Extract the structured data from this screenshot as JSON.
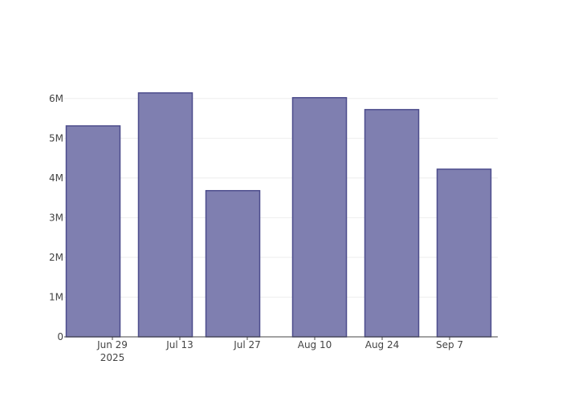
{
  "chart_data": {
    "type": "bar",
    "x": [
      "2025-06-25",
      "2025-07-10",
      "2025-07-24",
      "2025-08-11",
      "2025-08-26",
      "2025-09-10"
    ],
    "values": [
      5310000,
      6140000,
      3680000,
      6020000,
      5720000,
      4220000
    ],
    "color": "#7f7fb0",
    "edge_color": "#4c4c8c",
    "xlim": [
      "2025-06-19",
      "2025-09-17"
    ],
    "xticks": [
      {
        "value": "2025-06-29",
        "label": "Jun 29\n2025"
      },
      {
        "value": "2025-07-13",
        "label": "Jul 13"
      },
      {
        "value": "2025-07-27",
        "label": "Jul 27"
      },
      {
        "value": "2025-08-10",
        "label": "Aug 10"
      },
      {
        "value": "2025-08-24",
        "label": "Aug 24"
      },
      {
        "value": "2025-09-07",
        "label": "Sep 7"
      }
    ],
    "ylim": [
      0,
      6460000
    ],
    "yticks": [
      0,
      {
        "value": 1000000,
        "label": "1M"
      },
      {
        "value": 2000000,
        "label": "2M"
      },
      {
        "value": 3000000,
        "label": "3M"
      },
      {
        "value": 4000000,
        "label": "4M"
      },
      {
        "value": 5000000,
        "label": "5M"
      },
      {
        "value": 6000000,
        "label": "6M"
      }
    ],
    "grid": true
  }
}
